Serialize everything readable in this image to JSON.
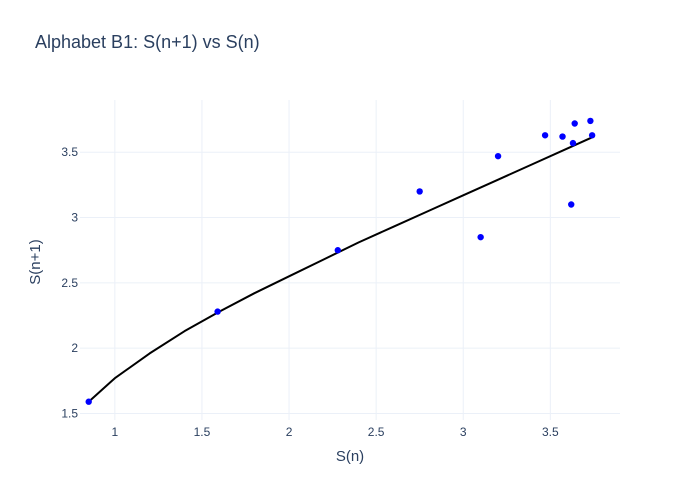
{
  "chart_data": {
    "type": "scatter",
    "title": "Alphabet B1: S(n+1) vs S(n)",
    "xlabel": "S(n)",
    "ylabel": "S(n+1)",
    "xlim": [
      0.8,
      3.9
    ],
    "ylim": [
      1.45,
      3.9
    ],
    "x_ticks": [
      1,
      1.5,
      2,
      2.5,
      3,
      3.5
    ],
    "x_tick_labels": [
      "1",
      "1.5",
      "2",
      "2.5",
      "3",
      "3.5"
    ],
    "y_ticks": [
      1.5,
      2,
      2.5,
      3,
      3.5
    ],
    "y_tick_labels": [
      "1.5",
      "2",
      "2.5",
      "3",
      "3.5"
    ],
    "grid": true,
    "legend": "none",
    "series": [
      {
        "type": "scatter",
        "color": "#0000ff",
        "x": [
          0.85,
          1.59,
          2.28,
          2.75,
          3.1,
          3.2,
          3.47,
          3.57,
          3.62,
          3.63,
          3.64,
          3.73,
          3.74
        ],
        "y": [
          1.59,
          2.28,
          2.75,
          3.2,
          2.85,
          3.47,
          3.63,
          3.62,
          3.1,
          3.57,
          3.72,
          3.74,
          3.63
        ]
      },
      {
        "type": "line",
        "color": "#000000",
        "x": [
          0.85,
          1.0,
          1.2,
          1.4,
          1.6,
          1.8,
          2.0,
          2.2,
          2.4,
          2.6,
          2.8,
          3.0,
          3.2,
          3.4,
          3.6,
          3.75
        ],
        "y": [
          1.59,
          1.77,
          1.96,
          2.13,
          2.28,
          2.42,
          2.55,
          2.68,
          2.81,
          2.93,
          3.05,
          3.17,
          3.29,
          3.41,
          3.53,
          3.62
        ]
      }
    ]
  }
}
